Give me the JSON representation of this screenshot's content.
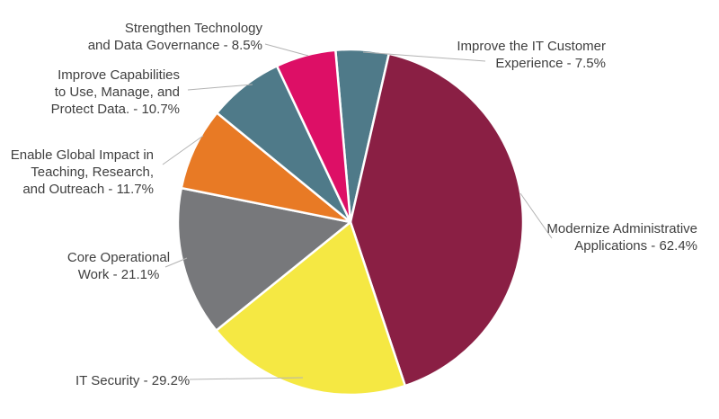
{
  "chart_data": {
    "type": "pie",
    "title": "",
    "legend": "none",
    "background": "#FFFFFF",
    "rotation": "clockwise",
    "start_angle_deg": -5,
    "values_total": 151.1,
    "angles_proportional_to_values": true,
    "label_text_color": "#3F3F3F",
    "leader_line_color": "#B3B3B3",
    "slice_border_color": "#FFFFFF",
    "slices": [
      {
        "label": "Improve the IT Customer Experience",
        "value": 7.5,
        "display": "Improve the IT Customer Experience - 7.5%",
        "color": "#4F7A89",
        "label_lines": [
          "Improve the IT Customer",
          "Experience - 7.5%"
        ]
      },
      {
        "label": "Modernize Administrative Applications",
        "value": 62.4,
        "display": "Modernize Administrative Applications - 62.4%",
        "color": "#8A1F44",
        "label_lines": [
          "Modernize Administrative",
          "Applications - 62.4%"
        ]
      },
      {
        "label": "IT Security",
        "value": 29.2,
        "display": "IT Security - 29.2%",
        "color": "#F5E843",
        "label_lines": [
          "IT Security - 29.2%"
        ]
      },
      {
        "label": "Core Operational Work",
        "value": 21.1,
        "display": "Core Operational Work - 21.1%",
        "color": "#77787B",
        "label_lines": [
          "Core Operational",
          "Work - 21.1%"
        ]
      },
      {
        "label": "Enable Global Impact in Teaching, Research, and Outreach",
        "value": 11.7,
        "display": "Enable Global Impact in Teaching, Research, and Outreach - 11.7%",
        "color": "#E87A25",
        "label_lines": [
          "Enable Global Impact in",
          "Teaching, Research,",
          "and Outreach - 11.7%"
        ]
      },
      {
        "label": "Improve Capabilities to Use, Manage, and Protect Data.",
        "value": 10.7,
        "display": "Improve Capabilities to Use, Manage, and Protect Data. - 10.7%",
        "color": "#4F7A89",
        "label_lines": [
          "Improve Capabilities",
          "to Use, Manage, and",
          "Protect Data. - 10.7%"
        ]
      },
      {
        "label": "Strengthen Technology and Data Governance",
        "value": 8.5,
        "display": "Strengthen Technology and Data Governance - 8.5%",
        "color": "#DD0F66",
        "label_lines": [
          "Strengthen Technology",
          "and Data Governance - 8.5%"
        ]
      }
    ]
  }
}
